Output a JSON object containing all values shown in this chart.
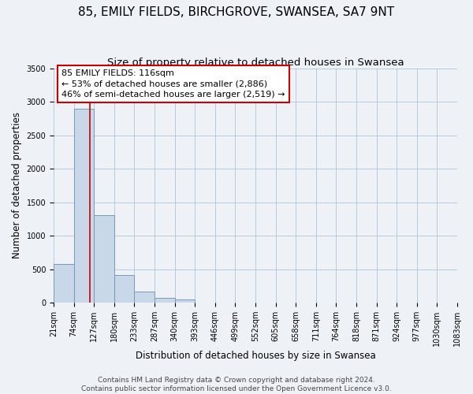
{
  "title": "85, EMILY FIELDS, BIRCHGROVE, SWANSEA, SA7 9NT",
  "subtitle": "Size of property relative to detached houses in Swansea",
  "xlabel": "Distribution of detached houses by size in Swansea",
  "ylabel": "Number of detached properties",
  "bin_labels": [
    "21sqm",
    "74sqm",
    "127sqm",
    "180sqm",
    "233sqm",
    "287sqm",
    "340sqm",
    "393sqm",
    "446sqm",
    "499sqm",
    "552sqm",
    "605sqm",
    "658sqm",
    "711sqm",
    "764sqm",
    "818sqm",
    "871sqm",
    "924sqm",
    "977sqm",
    "1030sqm",
    "1083sqm"
  ],
  "bar_heights": [
    575,
    2900,
    1310,
    410,
    170,
    65,
    50,
    0,
    0,
    0,
    0,
    0,
    0,
    0,
    0,
    0,
    0,
    0,
    0,
    0
  ],
  "bar_color": "#c8d8e8",
  "bar_edge_color": "#7799bb",
  "ylim": [
    0,
    3500
  ],
  "yticks": [
    0,
    500,
    1000,
    1500,
    2000,
    2500,
    3000,
    3500
  ],
  "annotation_label": "85 EMILY FIELDS: 116sqm",
  "annotation_line1": "← 53% of detached houses are smaller (2,886)",
  "annotation_line2": "46% of semi-detached houses are larger (2,519) →",
  "annotation_box_color": "#ffffff",
  "annotation_border_color": "#cc0000",
  "vline_color": "#cc0000",
  "footer1": "Contains HM Land Registry data © Crown copyright and database right 2024.",
  "footer2": "Contains public sector information licensed under the Open Government Licence v3.0.",
  "background_color": "#eef2f7",
  "grid_color": "#b0c4d8",
  "title_fontsize": 11,
  "subtitle_fontsize": 9.5,
  "axis_label_fontsize": 8.5,
  "tick_fontsize": 7,
  "footer_fontsize": 6.5,
  "annotation_fontsize": 8
}
